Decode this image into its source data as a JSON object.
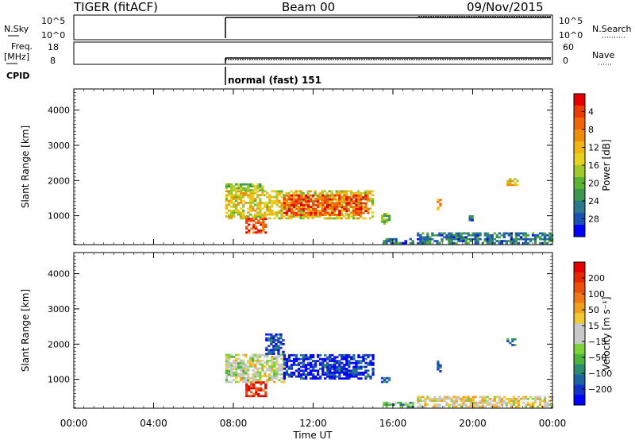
{
  "header": {
    "site": "TIGER (fitACF)",
    "beam": "Beam 00",
    "date": "09/Nov/2015"
  },
  "strips": {
    "nsky": {
      "label": "N.Sky",
      "ticks_left": [
        "10^5",
        "10^0"
      ]
    },
    "nsearch": {
      "label": "N.Search",
      "ticks_right": [
        "10^5",
        "10^0"
      ]
    },
    "freq": {
      "label_top": "Freq.",
      "label_bottom": "[MHz]",
      "ticks_left": [
        "18",
        "8"
      ]
    },
    "nave": {
      "label": "Nave",
      "ticks_right": [
        "60",
        "0"
      ]
    },
    "cpid": {
      "label": "CPID",
      "mode": "normal (fast) 151"
    }
  },
  "chart_data": [
    {
      "type": "heatmap",
      "title": "",
      "xlabel": "Time UT",
      "ylabel": "Slant Range [km]",
      "x_ticks": [
        "00:00",
        "04:00",
        "08:00",
        "12:00",
        "16:00",
        "20:00",
        "00:00"
      ],
      "xlim_hours": [
        0,
        24
      ],
      "y_ticks": [
        1000,
        2000,
        3000,
        4000
      ],
      "ylim": [
        180,
        4600
      ],
      "colorbar": {
        "label": "Power [dB]",
        "ticks": [
          "4",
          "8",
          "12",
          "16",
          "20",
          "24",
          "28"
        ],
        "colors": [
          "#0000ff",
          "#1e50b4",
          "#2a7a8c",
          "#3c9650",
          "#5ab432",
          "#a0c828",
          "#e6d21e",
          "#f0b414",
          "#f08c0a",
          "#f0640a",
          "#eb3c08",
          "#e60000"
        ]
      },
      "regions": [
        {
          "t0": 7.6,
          "t1": 15.0,
          "r0": 900,
          "r1": 1700,
          "v": 0.55
        },
        {
          "t0": 10.5,
          "t1": 14.8,
          "r0": 1000,
          "r1": 1600,
          "v": 0.85
        },
        {
          "t0": 8.6,
          "t1": 9.6,
          "r0": 500,
          "r1": 900,
          "v": 0.9
        },
        {
          "t0": 7.6,
          "t1": 9.5,
          "r0": 1700,
          "r1": 1900,
          "v": 0.4
        },
        {
          "t0": 15.4,
          "t1": 15.8,
          "r0": 750,
          "r1": 1050,
          "v": 0.35
        },
        {
          "t0": 17.2,
          "t1": 24.0,
          "r0": 200,
          "r1": 500,
          "v": 0.2
        },
        {
          "t0": 15.5,
          "t1": 17.0,
          "r0": 200,
          "r1": 350,
          "v": 0.2
        },
        {
          "t0": 18.2,
          "t1": 18.4,
          "r0": 1150,
          "r1": 1500,
          "v": 0.7
        },
        {
          "t0": 19.8,
          "t1": 20.0,
          "r0": 850,
          "r1": 1000,
          "v": 0.15
        },
        {
          "t0": 21.7,
          "t1": 22.3,
          "r0": 1850,
          "r1": 2050,
          "v": 0.6
        }
      ]
    },
    {
      "type": "heatmap",
      "title": "",
      "xlabel": "Time UT",
      "ylabel": "Slant Range [km]",
      "x_ticks": [
        "00:00",
        "04:00",
        "08:00",
        "12:00",
        "16:00",
        "20:00",
        "00:00"
      ],
      "xlim_hours": [
        0,
        24
      ],
      "y_ticks": [
        1000,
        2000,
        3000,
        4000
      ],
      "ylim": [
        180,
        4600
      ],
      "colorbar": {
        "label": "Velocity [m s⁻¹]",
        "ticks": [
          "200",
          "100",
          "50",
          "15",
          "−15",
          "−50",
          "−100",
          "−200"
        ],
        "colors": [
          "#0000ff",
          "#1432c8",
          "#1e64a0",
          "#2d8c6e",
          "#4bb43c",
          "#7dd23c",
          "#c8c8c8",
          "#c8c8c8",
          "#f0c832",
          "#f0a01e",
          "#f07814",
          "#eb500a",
          "#e62800",
          "#e60000"
        ]
      },
      "regions": [
        {
          "t0": 7.6,
          "t1": 10.5,
          "r0": 900,
          "r1": 1700,
          "v": 0.5
        },
        {
          "t0": 10.5,
          "t1": 15.0,
          "r0": 1000,
          "r1": 1700,
          "v": 0.05
        },
        {
          "t0": 8.6,
          "t1": 9.6,
          "r0": 500,
          "r1": 900,
          "v": 0.95
        },
        {
          "t0": 7.6,
          "t1": 8.6,
          "r0": 1100,
          "r1": 1500,
          "v": 0.45
        },
        {
          "t0": 9.6,
          "t1": 10.5,
          "r0": 1700,
          "r1": 2300,
          "v": 0.1
        },
        {
          "t0": 15.4,
          "t1": 15.8,
          "r0": 900,
          "r1": 1050,
          "v": 0.2
        },
        {
          "t0": 17.2,
          "t1": 24.0,
          "r0": 200,
          "r1": 500,
          "v": 0.55
        },
        {
          "t0": 15.5,
          "t1": 17.0,
          "r0": 200,
          "r1": 350,
          "v": 0.3
        },
        {
          "t0": 18.2,
          "t1": 18.4,
          "r0": 1150,
          "r1": 1500,
          "v": 0.05
        },
        {
          "t0": 21.7,
          "t1": 22.3,
          "r0": 1950,
          "r1": 2150,
          "v": 0.2
        }
      ]
    }
  ]
}
